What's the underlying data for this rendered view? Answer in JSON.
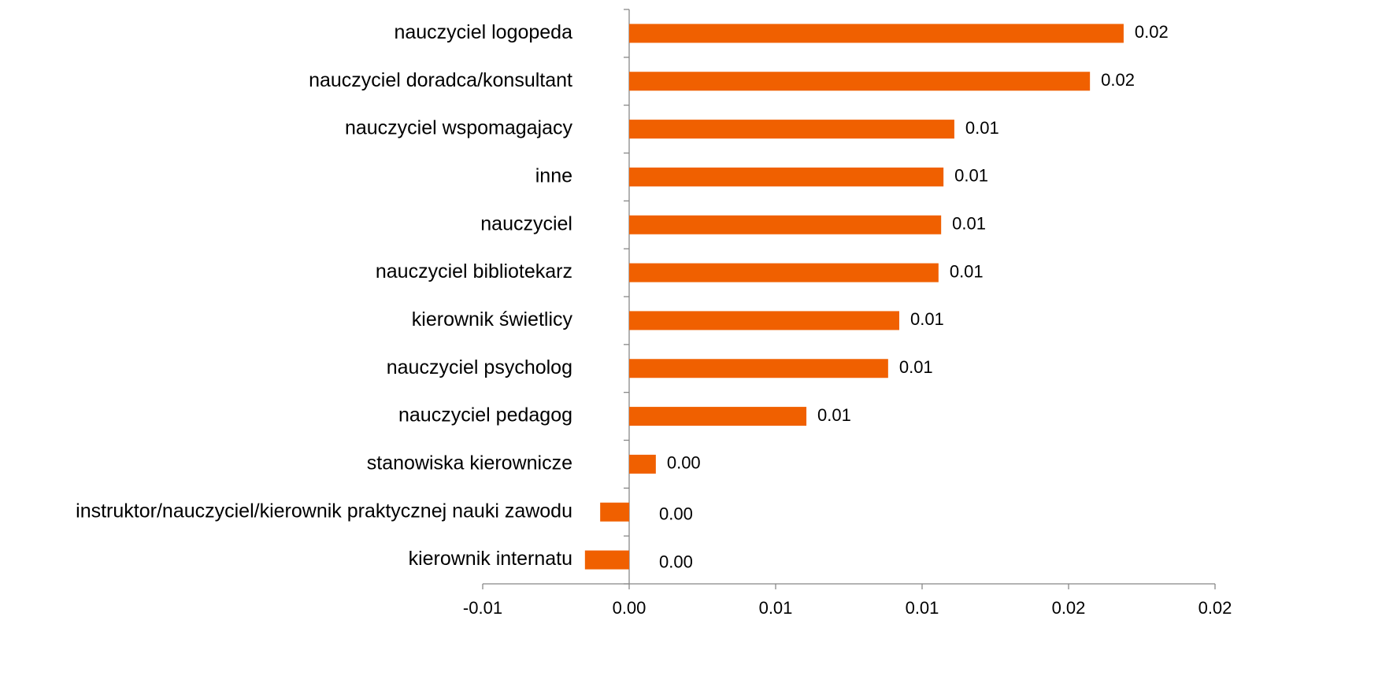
{
  "chart_data": {
    "type": "barh",
    "categories": [
      "nauczyciel logopeda",
      "nauczyciel doradca/konsultant",
      "nauczyciel wspomagajacy",
      "inne",
      "nauczyciel",
      "nauczyciel bibliotekarz",
      "kierownik świetlicy",
      "nauczyciel psycholog",
      "nauczyciel pedagog",
      "stanowiska kierownicze",
      "instruktor/nauczyciel/kierownik praktycznej nauki zawodu",
      "kierownik internatu"
    ],
    "values": [
      0.01688,
      0.01573,
      0.0111,
      0.01073,
      0.01065,
      0.01056,
      0.00922,
      0.00884,
      0.00605,
      0.00091,
      -0.00099,
      -0.00151
    ],
    "value_labels": [
      "0.02",
      "0.02",
      "0.01",
      "0.01",
      "0.01",
      "0.01",
      "0.01",
      "0.01",
      "0.01",
      "0.00",
      "0.00",
      "0.00"
    ],
    "color": "#f06000",
    "xlim": [
      -0.005,
      0.02
    ],
    "xticks": [
      {
        "value": -0.005,
        "label": "-0.01"
      },
      {
        "value": 0,
        "label": "0.00"
      },
      {
        "value": 0.005,
        "label": "0.01"
      },
      {
        "value": 0.01,
        "label": "0.01"
      },
      {
        "value": 0.015,
        "label": "0.02"
      },
      {
        "value": 0.02,
        "label": "0.02"
      }
    ]
  }
}
